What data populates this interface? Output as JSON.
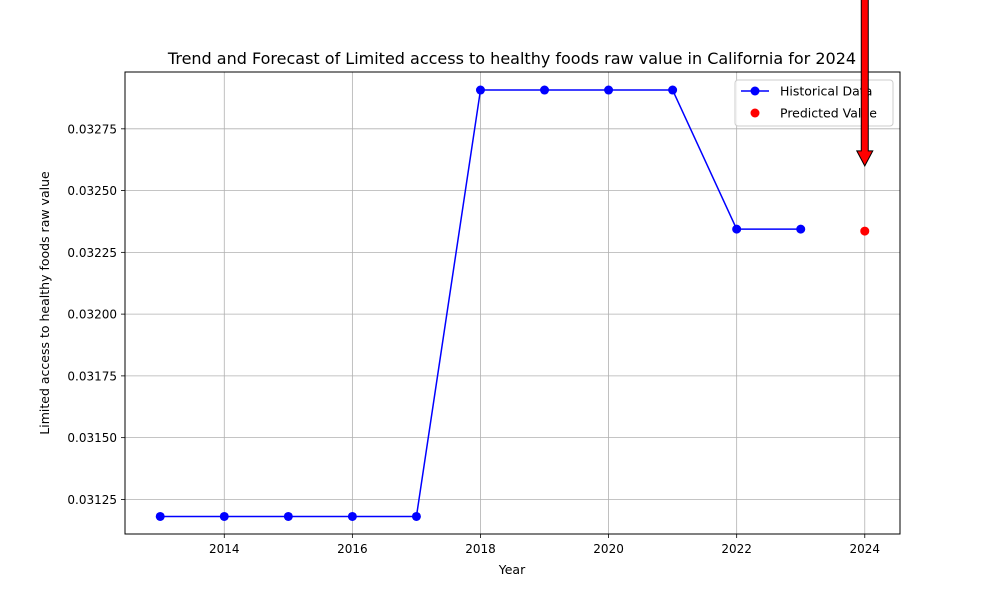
{
  "chart_data": {
    "type": "line",
    "title": "Trend and Forecast of Limited access to healthy foods raw value in California for 2024",
    "xlabel": "Year",
    "ylabel": "Limited access to healthy foods raw value",
    "xlim": [
      2012.45,
      2024.55
    ],
    "ylim": [
      0.03111,
      0.03298
    ],
    "x_ticks": [
      2014,
      2016,
      2018,
      2020,
      2022,
      2024
    ],
    "y_ticks": [
      0.03125,
      0.0315,
      0.03175,
      0.032,
      0.03225,
      0.0325,
      0.03275
    ],
    "y_tick_labels": [
      "0.03125",
      "0.03150",
      "0.03175",
      "0.03200",
      "0.03225",
      "0.03250",
      "0.03275"
    ],
    "grid": true,
    "legend_position": "top-right",
    "series": [
      {
        "name": "Historical Data",
        "kind": "line-marker",
        "color": "#0000ff",
        "x": [
          2013,
          2014,
          2015,
          2016,
          2017,
          2018,
          2019,
          2020,
          2021,
          2022,
          2023
        ],
        "y": [
          0.031181,
          0.031181,
          0.031181,
          0.031181,
          0.031181,
          0.032907,
          0.032907,
          0.032907,
          0.032907,
          0.032344,
          0.032344
        ]
      },
      {
        "name": "Predicted Value",
        "kind": "scatter",
        "color": "#ff0000",
        "x": [
          2024
        ],
        "y": [
          0.032336
        ]
      }
    ],
    "annotation": {
      "type": "arrow",
      "color": "#ff0000",
      "edge_color": "#000000",
      "x": 2024,
      "points_to_y": 0.0326
    }
  }
}
